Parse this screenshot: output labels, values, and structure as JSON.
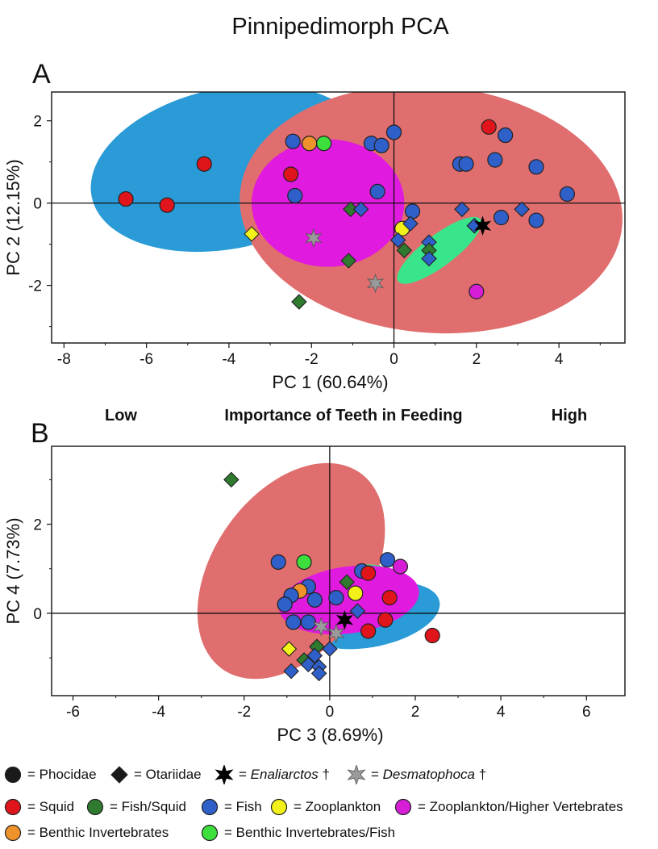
{
  "title": "Pinnipedimorph PCA",
  "importance": {
    "low": "Low",
    "mid": "Importance of Teeth in Feeding",
    "high": "High"
  },
  "colors": {
    "squid": "#e0151b",
    "fish_squid": "#2f7a2f",
    "fish": "#2f5fc8",
    "zooplankton": "#f2f21a",
    "zooplankton_hv": "#d61ed6",
    "benthic": "#f0922c",
    "benthic_fish": "#3ddf3d",
    "enaliarctos": "#000000",
    "desmatophoca": "#9a9a9a"
  },
  "legend": {
    "morph": [
      {
        "shape": "circle",
        "label": "= Phocidae"
      },
      {
        "shape": "diamond",
        "label": "= Otariidae"
      },
      {
        "shape": "star-black",
        "prefix": "= ",
        "italic": "Enaliarctos",
        "suffix": " †"
      },
      {
        "shape": "star-gray",
        "prefix": "= ",
        "italic": "Desmatophoca",
        "suffix": " †"
      }
    ],
    "diet_row1": [
      {
        "key": "squid",
        "label": "= Squid"
      },
      {
        "key": "fish_squid",
        "label": "= Fish/Squid"
      },
      {
        "key": "fish",
        "label": "= Fish"
      },
      {
        "key": "zooplankton",
        "label": "= Zooplankton"
      },
      {
        "key": "zooplankton_hv",
        "label": "= Zooplankton/Higher Vertebrates"
      }
    ],
    "diet_row2": [
      {
        "key": "benthic",
        "label": "= Benthic Invertebrates"
      },
      {
        "key": "benthic_fish",
        "label": "= Benthic Invertebrates/Fish"
      }
    ]
  },
  "chart_data": [
    {
      "panel": "A",
      "type": "scatter",
      "xlabel": "PC 1 (60.64%)",
      "ylabel": "PC 2 (12.15%)",
      "xlim": [
        -8.3,
        5.6
      ],
      "ylim": [
        -3.4,
        2.7
      ],
      "xticks": [
        -8,
        -6,
        -4,
        -2,
        0,
        2,
        4
      ],
      "yticks": [
        -2,
        0,
        2
      ],
      "ellipses": [
        {
          "group": "fish",
          "color": "#2a9bd6",
          "cx": -4.0,
          "cy": 0.85,
          "rx": 3.4,
          "ry": 1.95,
          "angle_deg": -12
        },
        {
          "group": "squid",
          "color": "#e06e6e",
          "cx": 0.9,
          "cy": -0.15,
          "rx": 4.65,
          "ry": 3.0,
          "angle_deg": 5
        },
        {
          "group": "zooplankton_hv",
          "color": "#e11ae0",
          "cx": -1.6,
          "cy": 0.0,
          "rx": 1.85,
          "ry": 1.55,
          "angle_deg": 0
        },
        {
          "group": "benthic_fish",
          "color": "#38e58a",
          "cx": 1.1,
          "cy": -1.15,
          "rx": 1.25,
          "ry": 0.38,
          "angle_deg": -37
        }
      ],
      "points": [
        {
          "x": -6.5,
          "y": 0.1,
          "shape": "circle",
          "diet": "squid"
        },
        {
          "x": -5.5,
          "y": -0.05,
          "shape": "circle",
          "diet": "squid"
        },
        {
          "x": -4.6,
          "y": 0.95,
          "shape": "circle",
          "diet": "squid"
        },
        {
          "x": -2.5,
          "y": 0.7,
          "shape": "circle",
          "diet": "squid"
        },
        {
          "x": 2.3,
          "y": 1.85,
          "shape": "circle",
          "diet": "squid"
        },
        {
          "x": -2.45,
          "y": 1.5,
          "shape": "circle",
          "diet": "fish"
        },
        {
          "x": -2.4,
          "y": 0.18,
          "shape": "circle",
          "diet": "fish"
        },
        {
          "x": -2.05,
          "y": 1.45,
          "shape": "circle",
          "diet": "benthic"
        },
        {
          "x": -1.7,
          "y": 1.45,
          "shape": "circle",
          "diet": "benthic_fish"
        },
        {
          "x": -0.55,
          "y": 1.45,
          "shape": "circle",
          "diet": "fish"
        },
        {
          "x": -0.3,
          "y": 1.4,
          "shape": "circle",
          "diet": "fish"
        },
        {
          "x": 0.0,
          "y": 1.72,
          "shape": "circle",
          "diet": "fish"
        },
        {
          "x": -0.4,
          "y": 0.28,
          "shape": "circle",
          "diet": "fish"
        },
        {
          "x": 1.6,
          "y": 0.95,
          "shape": "circle",
          "diet": "fish"
        },
        {
          "x": 1.75,
          "y": 0.95,
          "shape": "circle",
          "diet": "fish"
        },
        {
          "x": 2.45,
          "y": 1.05,
          "shape": "circle",
          "diet": "fish"
        },
        {
          "x": 2.7,
          "y": 1.65,
          "shape": "circle",
          "diet": "fish"
        },
        {
          "x": 3.45,
          "y": 0.88,
          "shape": "circle",
          "diet": "fish"
        },
        {
          "x": 4.2,
          "y": 0.22,
          "shape": "circle",
          "diet": "fish"
        },
        {
          "x": 0.45,
          "y": -0.2,
          "shape": "circle",
          "diet": "fish"
        },
        {
          "x": 2.6,
          "y": -0.35,
          "shape": "circle",
          "diet": "fish"
        },
        {
          "x": 3.45,
          "y": -0.42,
          "shape": "circle",
          "diet": "fish"
        },
        {
          "x": 0.2,
          "y": -0.62,
          "shape": "circle",
          "diet": "zooplankton"
        },
        {
          "x": 2.0,
          "y": -2.15,
          "shape": "circle",
          "diet": "zooplankton_hv"
        },
        {
          "x": -1.05,
          "y": -0.15,
          "shape": "diamond",
          "diet": "fish_squid"
        },
        {
          "x": -0.8,
          "y": -0.15,
          "shape": "diamond",
          "diet": "fish"
        },
        {
          "x": -1.1,
          "y": -1.4,
          "shape": "diamond",
          "diet": "fish_squid"
        },
        {
          "x": -2.3,
          "y": -2.4,
          "shape": "diamond",
          "diet": "fish_squid"
        },
        {
          "x": -3.45,
          "y": -0.75,
          "shape": "diamond",
          "diet": "zooplankton"
        },
        {
          "x": 0.4,
          "y": -0.5,
          "shape": "diamond",
          "diet": "fish"
        },
        {
          "x": 0.1,
          "y": -0.9,
          "shape": "diamond",
          "diet": "fish"
        },
        {
          "x": 0.25,
          "y": -1.15,
          "shape": "diamond",
          "diet": "fish_squid"
        },
        {
          "x": 0.85,
          "y": -0.95,
          "shape": "diamond",
          "diet": "fish"
        },
        {
          "x": 0.85,
          "y": -1.15,
          "shape": "diamond",
          "diet": "fish_squid"
        },
        {
          "x": 0.85,
          "y": -1.35,
          "shape": "diamond",
          "diet": "fish"
        },
        {
          "x": 1.65,
          "y": -0.15,
          "shape": "diamond",
          "diet": "fish"
        },
        {
          "x": 1.95,
          "y": -0.55,
          "shape": "diamond",
          "diet": "fish"
        },
        {
          "x": 3.1,
          "y": -0.15,
          "shape": "diamond",
          "diet": "fish"
        },
        {
          "x": 2.15,
          "y": -0.55,
          "shape": "star",
          "diet": "enaliarctos"
        },
        {
          "x": -1.95,
          "y": -0.85,
          "shape": "star",
          "diet": "desmatophoca"
        },
        {
          "x": -0.45,
          "y": -1.95,
          "shape": "star",
          "diet": "desmatophoca"
        }
      ]
    },
    {
      "panel": "B",
      "type": "scatter",
      "xlabel": "PC 3 (8.69%)",
      "ylabel": "PC 4 (7.73%)",
      "xlim": [
        -6.5,
        6.9
      ],
      "ylim": [
        -1.85,
        3.75
      ],
      "xticks": [
        -6,
        -4,
        -2,
        0,
        2,
        4,
        6
      ],
      "yticks": [
        0,
        2
      ],
      "ellipses": [
        {
          "group": "fish",
          "color": "#2a9bd6",
          "cx": 1.0,
          "cy": -0.05,
          "rx": 1.6,
          "ry": 0.7,
          "angle_deg": -12
        },
        {
          "group": "squid",
          "color": "#e06e6e",
          "cx": -0.9,
          "cy": 0.95,
          "rx": 2.8,
          "ry": 1.75,
          "angle_deg": -55
        },
        {
          "group": "benthic_fish",
          "color": "#38e58a",
          "cx": 0.9,
          "cy": 0.75,
          "rx": 0.7,
          "ry": 0.35,
          "angle_deg": 0
        },
        {
          "group": "zooplankton_hv",
          "color": "#e11ae0",
          "cx": 0.45,
          "cy": 0.3,
          "rx": 1.65,
          "ry": 0.75,
          "angle_deg": -8
        }
      ],
      "points": [
        {
          "x": -2.3,
          "y": 3.0,
          "shape": "diamond",
          "diet": "fish_squid"
        },
        {
          "x": -1.2,
          "y": 1.15,
          "shape": "circle",
          "diet": "fish"
        },
        {
          "x": -0.6,
          "y": 1.15,
          "shape": "circle",
          "diet": "benthic_fish"
        },
        {
          "x": 1.35,
          "y": 1.2,
          "shape": "circle",
          "diet": "fish"
        },
        {
          "x": 1.65,
          "y": 1.05,
          "shape": "circle",
          "diet": "zooplankton_hv"
        },
        {
          "x": 0.75,
          "y": 0.95,
          "shape": "circle",
          "diet": "fish"
        },
        {
          "x": 0.9,
          "y": 0.9,
          "shape": "circle",
          "diet": "squid"
        },
        {
          "x": 0.4,
          "y": 0.7,
          "shape": "diamond",
          "diet": "fish_squid"
        },
        {
          "x": -0.5,
          "y": 0.6,
          "shape": "circle",
          "diet": "fish"
        },
        {
          "x": -0.7,
          "y": 0.5,
          "shape": "circle",
          "diet": "benthic"
        },
        {
          "x": -0.9,
          "y": 0.4,
          "shape": "circle",
          "diet": "fish"
        },
        {
          "x": -1.05,
          "y": 0.2,
          "shape": "circle",
          "diet": "fish"
        },
        {
          "x": -0.35,
          "y": 0.3,
          "shape": "circle",
          "diet": "fish"
        },
        {
          "x": 0.15,
          "y": 0.35,
          "shape": "circle",
          "diet": "fish"
        },
        {
          "x": 0.6,
          "y": 0.45,
          "shape": "circle",
          "diet": "zooplankton"
        },
        {
          "x": 1.4,
          "y": 0.35,
          "shape": "circle",
          "diet": "squid"
        },
        {
          "x": 0.65,
          "y": 0.05,
          "shape": "diamond",
          "diet": "fish"
        },
        {
          "x": -0.85,
          "y": -0.2,
          "shape": "circle",
          "diet": "fish"
        },
        {
          "x": -0.5,
          "y": -0.2,
          "shape": "circle",
          "diet": "fish"
        },
        {
          "x": 1.3,
          "y": -0.15,
          "shape": "circle",
          "diet": "squid"
        },
        {
          "x": 0.9,
          "y": -0.4,
          "shape": "circle",
          "diet": "squid"
        },
        {
          "x": 2.4,
          "y": -0.5,
          "shape": "circle",
          "diet": "squid"
        },
        {
          "x": -0.95,
          "y": -0.8,
          "shape": "diamond",
          "diet": "zooplankton"
        },
        {
          "x": -0.3,
          "y": -0.75,
          "shape": "diamond",
          "diet": "fish_squid"
        },
        {
          "x": 0.0,
          "y": -0.8,
          "shape": "diamond",
          "diet": "fish"
        },
        {
          "x": -0.35,
          "y": -0.95,
          "shape": "diamond",
          "diet": "fish"
        },
        {
          "x": -0.6,
          "y": -1.05,
          "shape": "diamond",
          "diet": "fish_squid"
        },
        {
          "x": -0.5,
          "y": -1.15,
          "shape": "diamond",
          "diet": "fish"
        },
        {
          "x": -0.25,
          "y": -1.2,
          "shape": "diamond",
          "diet": "fish"
        },
        {
          "x": -0.9,
          "y": -1.3,
          "shape": "diamond",
          "diet": "fish"
        },
        {
          "x": -0.25,
          "y": -1.35,
          "shape": "diamond",
          "diet": "fish"
        },
        {
          "x": 0.35,
          "y": -0.15,
          "shape": "star",
          "diet": "enaliarctos"
        },
        {
          "x": -0.2,
          "y": -0.3,
          "shape": "star",
          "diet": "desmatophoca"
        },
        {
          "x": 0.15,
          "y": -0.45,
          "shape": "star",
          "diet": "desmatophoca"
        }
      ]
    }
  ]
}
